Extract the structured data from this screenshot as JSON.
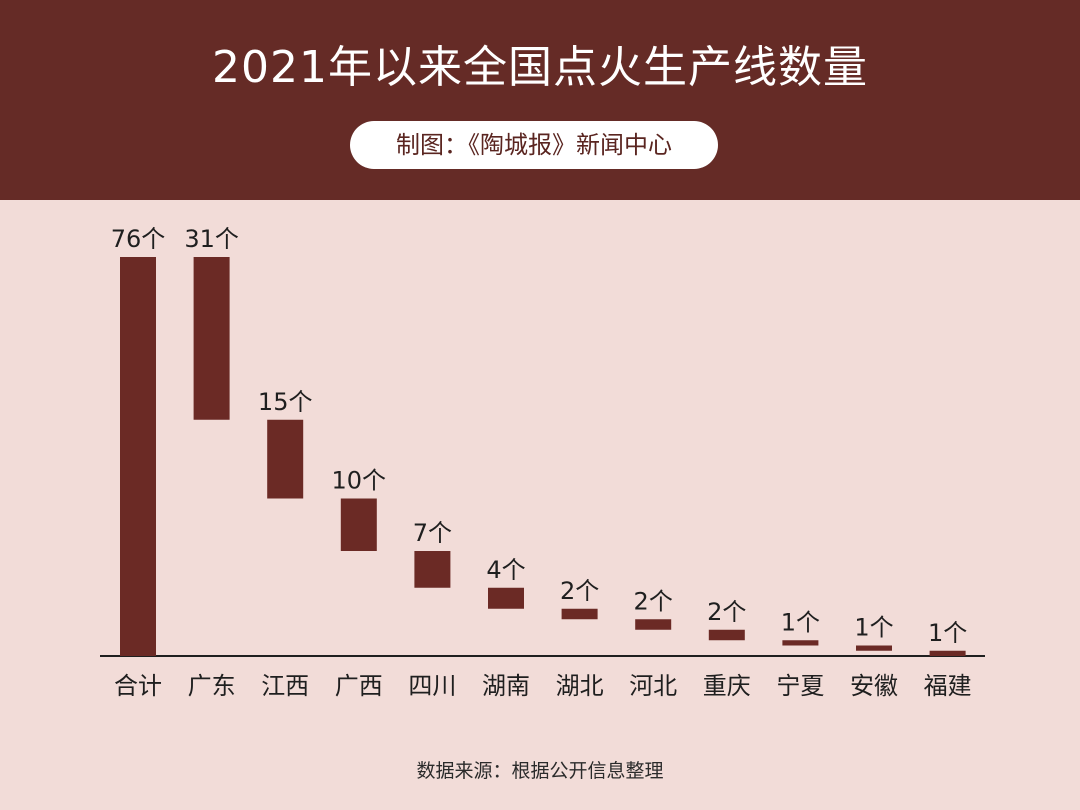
{
  "title": "2021年以来全国点火生产线数量",
  "credit": "制图：《陶城报》新闻中心",
  "source": "数据来源：根据公开信息整理",
  "colors": {
    "header_bg": "#652b26",
    "bar": "#6b2a25",
    "background": "#f2dcd8",
    "axis": "#1f1f1f"
  },
  "chart_data": {
    "type": "bar",
    "subtype": "waterfall",
    "title": "2021年以来全国点火生产线数量",
    "categories": [
      "合计",
      "广东",
      "江西",
      "广西",
      "四川",
      "湖南",
      "湖北",
      "河北",
      "重庆",
      "宁夏",
      "安徽",
      "福建"
    ],
    "values": [
      76,
      31,
      15,
      10,
      7,
      4,
      2,
      2,
      2,
      1,
      1,
      1
    ],
    "labels": [
      "76个",
      "31个",
      "15个",
      "10个",
      "7个",
      "4个",
      "2个",
      "2个",
      "2个",
      "1个",
      "1个",
      "1个"
    ],
    "total_category": "合计",
    "ylim": [
      0,
      76
    ],
    "xlabel": "",
    "ylabel": "",
    "grid": false,
    "legend": "none"
  }
}
